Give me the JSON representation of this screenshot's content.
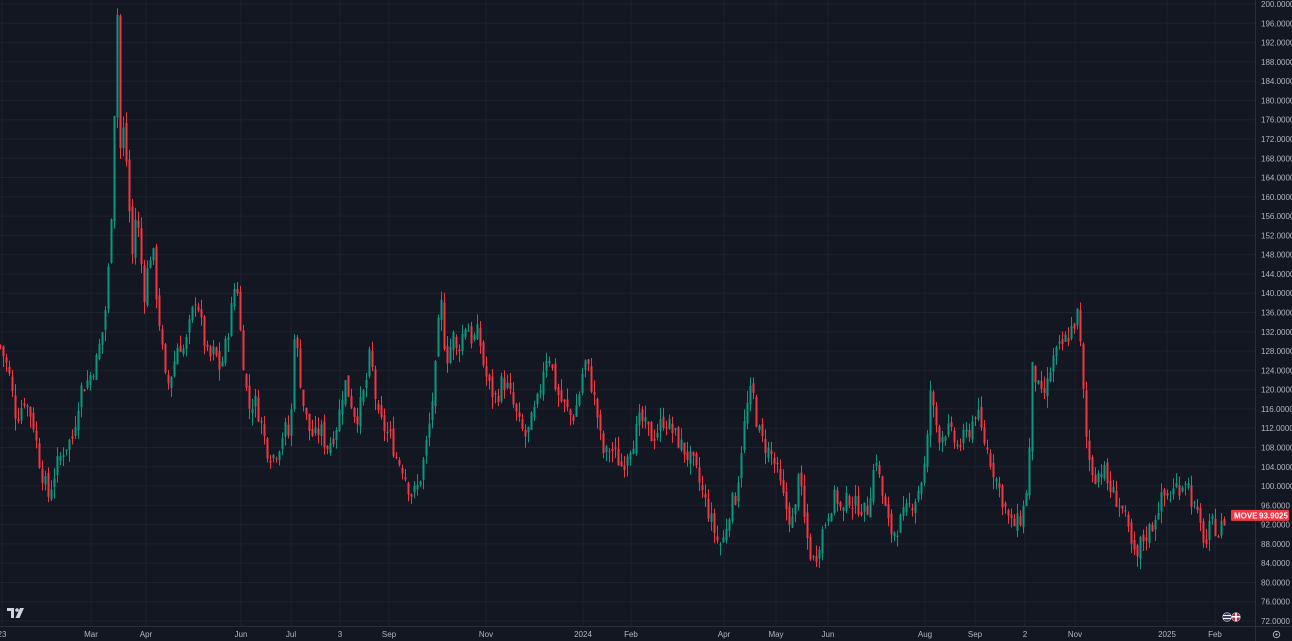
{
  "chart_data": {
    "type": "candlestick",
    "symbol": "MOVE",
    "last_price": "93.9025",
    "ylim": [
      72,
      200
    ],
    "y_ticks": [
      "72.0000",
      "76.0000",
      "80.0000",
      "84.0000",
      "88.0000",
      "92.0000",
      "96.0000",
      "100.0000",
      "104.0000",
      "108.0000",
      "112.0000",
      "116.0000",
      "120.0000",
      "124.0000",
      "128.0000",
      "132.0000",
      "136.0000",
      "140.0000",
      "144.0000",
      "148.0000",
      "152.0000",
      "156.0000",
      "160.0000",
      "164.0000",
      "168.0000",
      "172.0000",
      "176.0000",
      "180.0000",
      "184.0000",
      "188.0000",
      "192.0000",
      "196.0000",
      "200.0000"
    ],
    "x_ticks": [
      "23",
      "Mar",
      "Apr",
      "Jun",
      "Jul",
      "3",
      "Sep",
      "Nov",
      "2024",
      "Feb",
      "Apr",
      "May",
      "Jun",
      "Aug",
      "Sep",
      "2",
      "Nov",
      "2025",
      "Feb"
    ],
    "close_path": [
      [
        0,
        129
      ],
      [
        8,
        124
      ],
      [
        16,
        114
      ],
      [
        24,
        118
      ],
      [
        32,
        114
      ],
      [
        40,
        104
      ],
      [
        48,
        98
      ],
      [
        56,
        104
      ],
      [
        64,
        108
      ],
      [
        72,
        110
      ],
      [
        80,
        120
      ],
      [
        88,
        122
      ],
      [
        96,
        126
      ],
      [
        104,
        134
      ],
      [
        110,
        150
      ],
      [
        114,
        178
      ],
      [
        117,
        198
      ],
      [
        120,
        170
      ],
      [
        124,
        175
      ],
      [
        128,
        160
      ],
      [
        132,
        148
      ],
      [
        136,
        158
      ],
      [
        140,
        148
      ],
      [
        144,
        140
      ],
      [
        148,
        146
      ],
      [
        152,
        150
      ],
      [
        156,
        140
      ],
      [
        160,
        132
      ],
      [
        166,
        120
      ],
      [
        172,
        124
      ],
      [
        178,
        130
      ],
      [
        184,
        128
      ],
      [
        190,
        134
      ],
      [
        196,
        140
      ],
      [
        202,
        132
      ],
      [
        208,
        126
      ],
      [
        214,
        128
      ],
      [
        220,
        124
      ],
      [
        226,
        130
      ],
      [
        232,
        138
      ],
      [
        236,
        144
      ],
      [
        240,
        132
      ],
      [
        244,
        124
      ],
      [
        248,
        116
      ],
      [
        254,
        118
      ],
      [
        260,
        114
      ],
      [
        266,
        108
      ],
      [
        272,
        106
      ],
      [
        278,
        108
      ],
      [
        284,
        112
      ],
      [
        290,
        110
      ],
      [
        294,
        132
      ],
      [
        298,
        126
      ],
      [
        302,
        118
      ],
      [
        308,
        112
      ],
      [
        314,
        110
      ],
      [
        320,
        112
      ],
      [
        326,
        108
      ],
      [
        332,
        110
      ],
      [
        338,
        114
      ],
      [
        344,
        122
      ],
      [
        350,
        118
      ],
      [
        356,
        114
      ],
      [
        362,
        118
      ],
      [
        366,
        122
      ],
      [
        370,
        128
      ],
      [
        374,
        120
      ],
      [
        378,
        114
      ],
      [
        384,
        112
      ],
      [
        390,
        110
      ],
      [
        396,
        106
      ],
      [
        402,
        104
      ],
      [
        408,
        100
      ],
      [
        412,
        98
      ],
      [
        418,
        100
      ],
      [
        424,
        106
      ],
      [
        430,
        114
      ],
      [
        436,
        126
      ],
      [
        440,
        140
      ],
      [
        444,
        130
      ],
      [
        448,
        126
      ],
      [
        452,
        132
      ],
      [
        456,
        128
      ],
      [
        460,
        130
      ],
      [
        466,
        134
      ],
      [
        472,
        130
      ],
      [
        478,
        132
      ],
      [
        484,
        124
      ],
      [
        490,
        120
      ],
      [
        496,
        118
      ],
      [
        502,
        122
      ],
      [
        508,
        120
      ],
      [
        514,
        116
      ],
      [
        520,
        112
      ],
      [
        526,
        110
      ],
      [
        532,
        114
      ],
      [
        538,
        118
      ],
      [
        544,
        126
      ],
      [
        548,
        128
      ],
      [
        552,
        124
      ],
      [
        556,
        120
      ],
      [
        560,
        118
      ],
      [
        566,
        116
      ],
      [
        572,
        114
      ],
      [
        578,
        118
      ],
      [
        584,
        126
      ],
      [
        588,
        124
      ],
      [
        592,
        120
      ],
      [
        596,
        116
      ],
      [
        600,
        110
      ],
      [
        604,
        106
      ],
      [
        610,
        108
      ],
      [
        616,
        106
      ],
      [
        622,
        104
      ],
      [
        628,
        108
      ],
      [
        634,
        110
      ],
      [
        640,
        114
      ],
      [
        646,
        112
      ],
      [
        652,
        110
      ],
      [
        658,
        112
      ],
      [
        664,
        114
      ],
      [
        670,
        112
      ],
      [
        676,
        110
      ],
      [
        682,
        108
      ],
      [
        688,
        106
      ],
      [
        694,
        104
      ],
      [
        700,
        100
      ],
      [
        706,
        96
      ],
      [
        712,
        92
      ],
      [
        718,
        88
      ],
      [
        722,
        88
      ],
      [
        726,
        92
      ],
      [
        730,
        96
      ],
      [
        736,
        98
      ],
      [
        742,
        110
      ],
      [
        748,
        118
      ],
      [
        752,
        120
      ],
      [
        756,
        114
      ],
      [
        760,
        110
      ],
      [
        766,
        108
      ],
      [
        772,
        106
      ],
      [
        778,
        102
      ],
      [
        782,
        98
      ],
      [
        788,
        94
      ],
      [
        794,
        92
      ],
      [
        798,
        104
      ],
      [
        802,
        96
      ],
      [
        806,
        90
      ],
      [
        810,
        86
      ],
      [
        814,
        84
      ],
      [
        818,
        88
      ],
      [
        824,
        92
      ],
      [
        830,
        96
      ],
      [
        836,
        98
      ],
      [
        842,
        94
      ],
      [
        848,
        98
      ],
      [
        854,
        96
      ],
      [
        860,
        96
      ],
      [
        866,
        94
      ],
      [
        872,
        102
      ],
      [
        876,
        106
      ],
      [
        880,
        100
      ],
      [
        884,
        96
      ],
      [
        888,
        92
      ],
      [
        892,
        90
      ],
      [
        898,
        92
      ],
      [
        904,
        94
      ],
      [
        910,
        96
      ],
      [
        916,
        98
      ],
      [
        922,
        102
      ],
      [
        926,
        106
      ],
      [
        930,
        120
      ],
      [
        934,
        114
      ],
      [
        940,
        110
      ],
      [
        946,
        112
      ],
      [
        952,
        110
      ],
      [
        958,
        108
      ],
      [
        964,
        110
      ],
      [
        970,
        112
      ],
      [
        976,
        116
      ],
      [
        980,
        112
      ],
      [
        986,
        108
      ],
      [
        992,
        104
      ],
      [
        998,
        100
      ],
      [
        1004,
        96
      ],
      [
        1010,
        92
      ],
      [
        1016,
        92
      ],
      [
        1022,
        94
      ],
      [
        1028,
        102
      ],
      [
        1032,
        124
      ],
      [
        1036,
        122
      ],
      [
        1040,
        118
      ],
      [
        1046,
        120
      ],
      [
        1052,
        126
      ],
      [
        1058,
        128
      ],
      [
        1064,
        130
      ],
      [
        1070,
        132
      ],
      [
        1074,
        134
      ],
      [
        1078,
        136
      ],
      [
        1082,
        122
      ],
      [
        1086,
        110
      ],
      [
        1090,
        104
      ],
      [
        1096,
        102
      ],
      [
        1102,
        104
      ],
      [
        1108,
        100
      ],
      [
        1114,
        98
      ],
      [
        1120,
        96
      ],
      [
        1124,
        94
      ],
      [
        1130,
        88
      ],
      [
        1136,
        84
      ],
      [
        1140,
        88
      ],
      [
        1146,
        90
      ],
      [
        1152,
        92
      ],
      [
        1158,
        96
      ],
      [
        1164,
        98
      ],
      [
        1170,
        98
      ],
      [
        1176,
        100
      ],
      [
        1180,
        100
      ],
      [
        1186,
        102
      ],
      [
        1190,
        98
      ],
      [
        1196,
        94
      ],
      [
        1202,
        90
      ],
      [
        1206,
        88
      ],
      [
        1210,
        92
      ],
      [
        1214,
        92
      ],
      [
        1218,
        90
      ],
      [
        1222,
        92
      ],
      [
        1226,
        94
      ]
    ]
  }
}
